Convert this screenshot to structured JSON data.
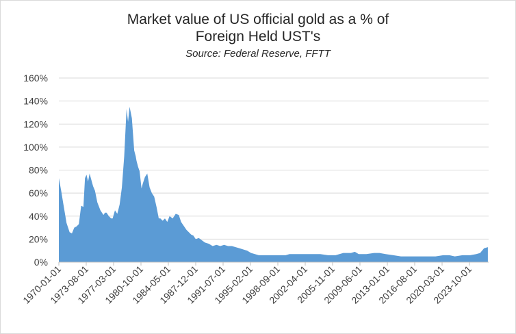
{
  "chart_data": {
    "type": "area",
    "title_line1": "Market value  of US official gold as a % of",
    "title_line2": "Foreign Held UST's",
    "subtitle": "Source:  Federal Reserve, FFTT",
    "xlabel": "",
    "ylabel": "",
    "ylim": [
      0,
      160
    ],
    "yticks": [
      "0%",
      "20%",
      "40%",
      "60%",
      "80%",
      "100%",
      "120%",
      "140%",
      "160%"
    ],
    "xticks": [
      "1970-01-01",
      "1973-08-01",
      "1977-03-01",
      "1980-10-01",
      "1984-05-01",
      "1987-12-01",
      "1991-07-01",
      "1995-02-01",
      "1998-09-01",
      "2002-04-01",
      "2005-11-01",
      "2009-06-01",
      "2013-01-01",
      "2016-08-01",
      "2020-03-01",
      "2023-10-01"
    ],
    "grid": true,
    "legend": "none",
    "color": "#5b9bd5",
    "series": [
      {
        "x": [
          1970.0,
          1970.3,
          1970.6,
          1971.0,
          1971.4,
          1971.7,
          1972.0,
          1972.3,
          1972.6,
          1972.9,
          1973.2,
          1973.4,
          1973.6,
          1973.8,
          1974.0,
          1974.2,
          1974.45,
          1974.7,
          1975.0,
          1975.4,
          1975.8,
          1976.0,
          1976.2,
          1976.5,
          1976.8,
          1977.0,
          1977.3,
          1977.6,
          1977.9,
          1978.2,
          1978.5,
          1978.8,
          1979.0,
          1979.2,
          1979.5,
          1979.8,
          1980.0,
          1980.1,
          1980.3,
          1980.5,
          1980.75,
          1980.9,
          1981.2,
          1981.5,
          1981.8,
          1982.1,
          1982.4,
          1982.7,
          1983.0,
          1983.2,
          1983.5,
          1983.8,
          1984.1,
          1984.4,
          1984.8,
          1985.2,
          1985.6,
          1985.9,
          1986.3,
          1986.6,
          1986.9,
          1987.2,
          1987.5,
          1987.8,
          1988.2,
          1988.6,
          1989.0,
          1989.5,
          1990.0,
          1990.5,
          1991.0,
          1991.5,
          1992.0,
          1992.5,
          1993.0,
          1993.5,
          1994.0,
          1994.5,
          1995.0,
          1995.5,
          1996.0,
          1996.5,
          1997.0,
          1997.5,
          1998.0,
          1998.5,
          1999.0,
          1999.5,
          2000.0,
          2001.0,
          2002.0,
          2003.0,
          2004.0,
          2005.0,
          2006.0,
          2007.0,
          2008.0,
          2008.5,
          2009.0,
          2010.0,
          2011.0,
          2011.7,
          2012.5,
          2013.5,
          2014.5,
          2016.0,
          2017.0,
          2018.0,
          2019.0,
          2020.0,
          2020.8,
          2021.5,
          2022.5,
          2023.5,
          2024.3,
          2024.8,
          2025.3,
          2025.8
        ],
        "y": [
          73,
          62,
          50,
          34,
          26,
          25,
          30,
          31,
          33,
          49,
          48,
          73,
          76,
          70,
          77,
          72,
          66,
          62,
          52,
          45,
          41,
          43,
          43,
          40,
          38,
          38,
          45,
          42,
          50,
          65,
          92,
          133,
          122,
          135,
          125,
          97,
          92,
          88,
          83,
          79,
          64,
          68,
          74,
          77,
          65,
          60,
          57,
          48,
          38,
          38,
          36,
          38,
          35,
          40,
          38,
          42,
          41,
          35,
          31,
          28,
          26,
          24,
          23,
          20,
          21,
          19,
          17,
          16,
          14,
          15,
          14,
          15,
          14,
          14,
          13,
          12,
          11,
          10,
          8,
          7,
          6,
          6,
          6,
          6,
          6,
          6,
          6,
          6,
          7,
          7,
          7,
          7,
          7,
          6,
          6,
          8,
          8,
          9,
          7,
          7,
          8,
          8,
          7,
          6,
          5,
          5,
          5,
          5,
          5,
          6,
          6,
          5,
          6,
          6,
          7,
          8,
          12,
          13
        ]
      }
    ]
  }
}
